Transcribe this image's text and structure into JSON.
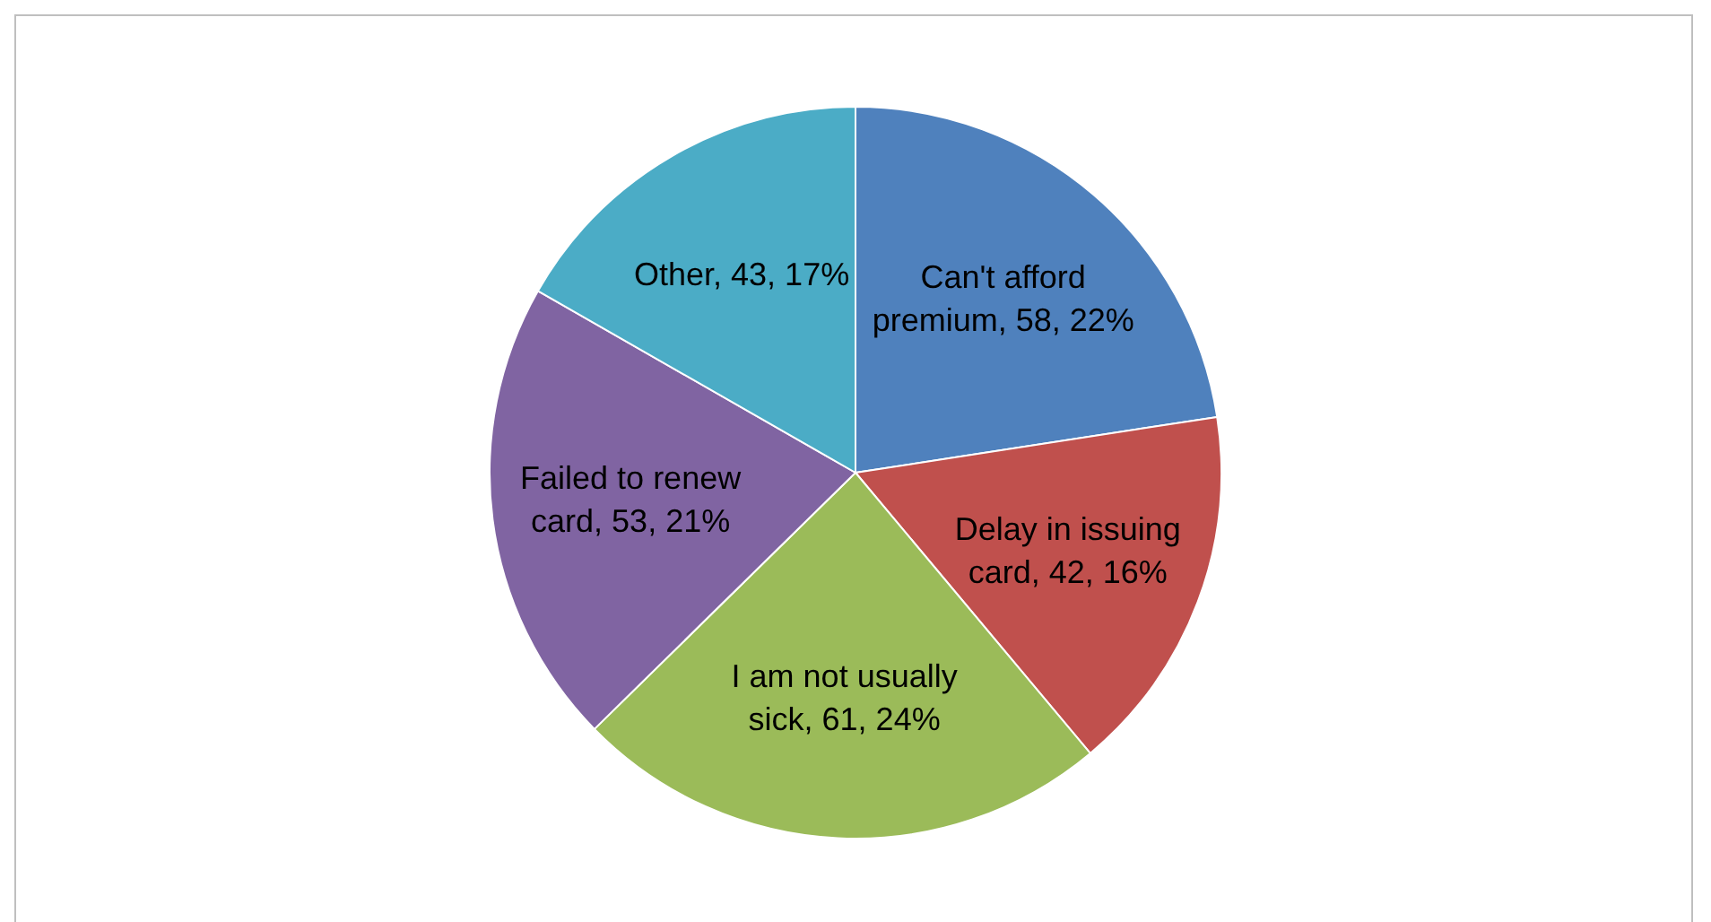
{
  "chart_data": {
    "type": "pie",
    "categories": [
      "Can't afford premium",
      "Delay in issuing card",
      "I am not usually sick",
      "Failed to renew card",
      "Other"
    ],
    "values": [
      58,
      42,
      61,
      53,
      43
    ],
    "value_labels": [
      "58, 22%",
      "42, 16%",
      "61, 24%",
      "53, 21%",
      "43, 17%"
    ],
    "colors": [
      "#4f81bd",
      "#c0504d",
      "#9bbb59",
      "#8064a2",
      "#4bacc6"
    ],
    "legend": false
  }
}
